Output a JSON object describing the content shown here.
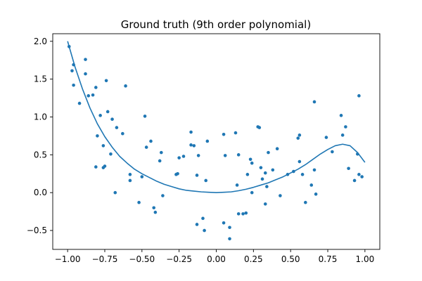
{
  "chart_data": {
    "type": "scatter",
    "title": "Ground truth (9th order polynomial)",
    "xlabel": "",
    "ylabel": "",
    "xlim": [
      -1.1,
      1.1
    ],
    "ylim": [
      -0.75,
      2.1
    ],
    "grid": false,
    "legend": "none",
    "x_ticks": [
      {
        "value": -1.0,
        "label": "−1.00"
      },
      {
        "value": -0.75,
        "label": "−0.75"
      },
      {
        "value": -0.5,
        "label": "−0.50"
      },
      {
        "value": -0.25,
        "label": "−0.25"
      },
      {
        "value": 0.0,
        "label": "0.00"
      },
      {
        "value": 0.25,
        "label": "0.25"
      },
      {
        "value": 0.5,
        "label": "0.50"
      },
      {
        "value": 0.75,
        "label": "0.75"
      },
      {
        "value": 1.0,
        "label": "1.00"
      }
    ],
    "y_ticks": [
      {
        "value": -0.5,
        "label": "−0.5"
      },
      {
        "value": 0.0,
        "label": "0.0"
      },
      {
        "value": 0.5,
        "label": "0.5"
      },
      {
        "value": 1.0,
        "label": "1.0"
      },
      {
        "value": 1.5,
        "label": "1.5"
      },
      {
        "value": 2.0,
        "label": "2.0"
      }
    ],
    "colors": {
      "series": "#1f77b4"
    },
    "series": [
      {
        "type": "line",
        "x": [
          -1.0,
          -0.95,
          -0.9,
          -0.85,
          -0.8,
          -0.75,
          -0.7,
          -0.65,
          -0.6,
          -0.55,
          -0.5,
          -0.45,
          -0.4,
          -0.35,
          -0.3,
          -0.25,
          -0.2,
          -0.15,
          -0.1,
          -0.05,
          0.0,
          0.05,
          0.1,
          0.15,
          0.2,
          0.25,
          0.3,
          0.35,
          0.4,
          0.45,
          0.5,
          0.55,
          0.6,
          0.65,
          0.7,
          0.75,
          0.8,
          0.85,
          0.9,
          0.95,
          1.0
        ],
        "y": [
          2.0,
          1.66,
          1.37,
          1.12,
          0.91,
          0.74,
          0.6,
          0.48,
          0.39,
          0.31,
          0.25,
          0.2,
          0.15,
          0.11,
          0.08,
          0.05,
          0.03,
          0.02,
          0.01,
          0.005,
          0.0,
          0.005,
          0.01,
          0.025,
          0.045,
          0.07,
          0.1,
          0.13,
          0.17,
          0.21,
          0.26,
          0.31,
          0.37,
          0.44,
          0.51,
          0.57,
          0.62,
          0.64,
          0.62,
          0.53,
          0.4
        ]
      },
      {
        "type": "scatter",
        "points": [
          [
            -0.99,
            1.93
          ],
          [
            -0.97,
            1.61
          ],
          [
            -0.96,
            1.69
          ],
          [
            -0.96,
            1.42
          ],
          [
            -0.92,
            1.18
          ],
          [
            -0.88,
            1.76
          ],
          [
            -0.88,
            1.57
          ],
          [
            -0.86,
            1.28
          ],
          [
            -0.83,
            1.29
          ],
          [
            -0.81,
            1.39
          ],
          [
            -0.81,
            0.34
          ],
          [
            -0.8,
            0.75
          ],
          [
            -0.78,
            1.02
          ],
          [
            -0.76,
            0.62
          ],
          [
            -0.76,
            0.33
          ],
          [
            -0.75,
            0.35
          ],
          [
            -0.74,
            1.48
          ],
          [
            -0.73,
            1.07
          ],
          [
            -0.71,
            0.51
          ],
          [
            -0.7,
            0.97
          ],
          [
            -0.68,
            0.0
          ],
          [
            -0.67,
            0.86
          ],
          [
            -0.63,
            0.78
          ],
          [
            -0.61,
            1.41
          ],
          [
            -0.58,
            0.24
          ],
          [
            -0.58,
            0.16
          ],
          [
            -0.52,
            -0.13
          ],
          [
            -0.5,
            0.21
          ],
          [
            -0.48,
            1.01
          ],
          [
            -0.47,
            0.6
          ],
          [
            -0.44,
            0.68
          ],
          [
            -0.42,
            -0.2
          ],
          [
            -0.41,
            -0.26
          ],
          [
            -0.38,
            0.42
          ],
          [
            -0.37,
            0.53
          ],
          [
            -0.36,
            -0.04
          ],
          [
            -0.27,
            0.24
          ],
          [
            -0.26,
            0.25
          ],
          [
            -0.25,
            0.46
          ],
          [
            -0.22,
            0.48
          ],
          [
            -0.17,
            0.8
          ],
          [
            -0.17,
            0.63
          ],
          [
            -0.15,
            0.62
          ],
          [
            -0.13,
            0.23
          ],
          [
            -0.13,
            -0.42
          ],
          [
            -0.12,
            0.49
          ],
          [
            -0.09,
            -0.34
          ],
          [
            -0.08,
            -0.5
          ],
          [
            -0.07,
            0.16
          ],
          [
            -0.06,
            0.68
          ],
          [
            0.05,
            0.77
          ],
          [
            0.05,
            -0.4
          ],
          [
            0.06,
            0.49
          ],
          [
            0.09,
            -0.46
          ],
          [
            0.09,
            -0.61
          ],
          [
            0.13,
            0.79
          ],
          [
            0.14,
            0.1
          ],
          [
            0.15,
            0.5
          ],
          [
            0.15,
            -0.28
          ],
          [
            0.18,
            -0.28
          ],
          [
            0.2,
            -0.27
          ],
          [
            0.21,
            0.24
          ],
          [
            0.23,
            0.44
          ],
          [
            0.24,
            0.39
          ],
          [
            0.24,
            0.0
          ],
          [
            0.28,
            0.87
          ],
          [
            0.29,
            0.86
          ],
          [
            0.3,
            0.33
          ],
          [
            0.31,
            0.18
          ],
          [
            0.33,
            -0.15
          ],
          [
            0.33,
            0.26
          ],
          [
            0.34,
            0.08
          ],
          [
            0.35,
            0.53
          ],
          [
            0.38,
            0.3
          ],
          [
            0.41,
            0.58
          ],
          [
            0.43,
            -0.04
          ],
          [
            0.48,
            0.24
          ],
          [
            0.52,
            0.28
          ],
          [
            0.55,
            0.72
          ],
          [
            0.56,
            0.76
          ],
          [
            0.56,
            0.41
          ],
          [
            0.58,
            0.24
          ],
          [
            0.6,
            -0.13
          ],
          [
            0.64,
            0.1
          ],
          [
            0.66,
            1.2
          ],
          [
            0.66,
            0.3
          ],
          [
            0.67,
            -0.02
          ],
          [
            0.74,
            0.73
          ],
          [
            0.78,
            0.54
          ],
          [
            0.84,
            1.02
          ],
          [
            0.85,
            0.76
          ],
          [
            0.87,
            0.87
          ],
          [
            0.89,
            0.32
          ],
          [
            0.93,
            0.16
          ],
          [
            0.95,
            0.51
          ],
          [
            0.96,
            1.28
          ],
          [
            0.96,
            0.24
          ],
          [
            0.98,
            0.21
          ]
        ]
      }
    ]
  }
}
